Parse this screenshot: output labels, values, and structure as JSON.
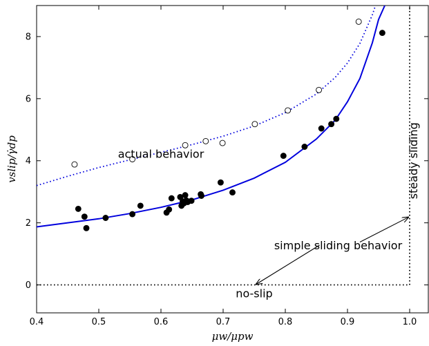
{
  "chart_data": {
    "type": "scatter",
    "title": "",
    "xlabel": "μw/μpw",
    "ylabel": "vslip/γ̇dp",
    "xlim": [
      0.4,
      1.03
    ],
    "ylim": [
      -0.9,
      9.0
    ],
    "xticks": [
      "0.4",
      "0.5",
      "0.6",
      "0.7",
      "0.8",
      "0.9",
      "1.0"
    ],
    "yticks": [
      "0",
      "2",
      "4",
      "6",
      "8"
    ],
    "grid": false,
    "legend": "none",
    "series": [
      {
        "marker": "filled-circle",
        "color": "#000000",
        "points": [
          [
            0.467,
            2.45
          ],
          [
            0.477,
            2.2
          ],
          [
            0.48,
            1.83
          ],
          [
            0.511,
            2.16
          ],
          [
            0.554,
            2.28
          ],
          [
            0.567,
            2.55
          ],
          [
            0.609,
            2.33
          ],
          [
            0.613,
            2.43
          ],
          [
            0.617,
            2.79
          ],
          [
            0.631,
            2.83
          ],
          [
            0.633,
            2.55
          ],
          [
            0.635,
            2.69
          ],
          [
            0.637,
            2.63
          ],
          [
            0.639,
            2.89
          ],
          [
            0.641,
            2.72
          ],
          [
            0.643,
            2.67
          ],
          [
            0.649,
            2.71
          ],
          [
            0.664,
            2.92
          ],
          [
            0.665,
            2.87
          ],
          [
            0.696,
            3.3
          ],
          [
            0.715,
            2.98
          ],
          [
            0.797,
            4.16
          ],
          [
            0.831,
            4.45
          ],
          [
            0.858,
            5.04
          ],
          [
            0.874,
            5.18
          ],
          [
            0.882,
            5.35
          ],
          [
            0.956,
            8.12
          ]
        ]
      },
      {
        "marker": "open-circle",
        "color": "#000000",
        "points": [
          [
            0.461,
            3.88
          ],
          [
            0.554,
            4.05
          ],
          [
            0.639,
            4.5
          ],
          [
            0.672,
            4.63
          ],
          [
            0.699,
            4.57
          ],
          [
            0.751,
            5.18
          ],
          [
            0.804,
            5.62
          ],
          [
            0.854,
            6.28
          ],
          [
            0.918,
            8.48
          ]
        ]
      },
      {
        "line": "solid",
        "color": "#0000dd",
        "points": [
          [
            0.4,
            1.87
          ],
          [
            0.45,
            2.0
          ],
          [
            0.5,
            2.13
          ],
          [
            0.55,
            2.3
          ],
          [
            0.6,
            2.5
          ],
          [
            0.65,
            2.74
          ],
          [
            0.7,
            3.05
          ],
          [
            0.75,
            3.44
          ],
          [
            0.8,
            3.95
          ],
          [
            0.85,
            4.7
          ],
          [
            0.88,
            5.3
          ],
          [
            0.9,
            5.9
          ],
          [
            0.92,
            6.65
          ],
          [
            0.94,
            7.8
          ],
          [
            0.95,
            8.55
          ],
          [
            0.96,
            9.0
          ]
        ]
      },
      {
        "line": "dotted",
        "color": "#0000dd",
        "points": [
          [
            0.4,
            3.2
          ],
          [
            0.45,
            3.5
          ],
          [
            0.5,
            3.78
          ],
          [
            0.55,
            4.03
          ],
          [
            0.6,
            4.27
          ],
          [
            0.65,
            4.52
          ],
          [
            0.7,
            4.79
          ],
          [
            0.75,
            5.12
          ],
          [
            0.8,
            5.55
          ],
          [
            0.85,
            6.15
          ],
          [
            0.88,
            6.68
          ],
          [
            0.9,
            7.15
          ],
          [
            0.92,
            7.78
          ],
          [
            0.94,
            8.7
          ],
          [
            0.945,
            9.0
          ]
        ]
      },
      {
        "line": "dotted",
        "color": "#000000",
        "points": [
          [
            0.4,
            0
          ],
          [
            1.0,
            0
          ],
          [
            1.0,
            9.0
          ]
        ]
      }
    ],
    "annotations": [
      {
        "text": "actual behavior",
        "x": 0.6,
        "y": 4.1
      },
      {
        "text": "simple sliding behavior",
        "x": 0.885,
        "y": 1.15
      },
      {
        "text": "no-slip",
        "x": 0.75,
        "y": -0.4
      },
      {
        "text": "steady sliding",
        "x": 1.012,
        "y": 4.0,
        "rotated": true
      }
    ],
    "arrows": [
      {
        "from": [
          0.855,
          1.28
        ],
        "to": [
          0.753,
          0.02
        ]
      },
      {
        "from": [
          0.92,
          1.38
        ],
        "to": [
          0.998,
          2.18
        ]
      }
    ]
  }
}
